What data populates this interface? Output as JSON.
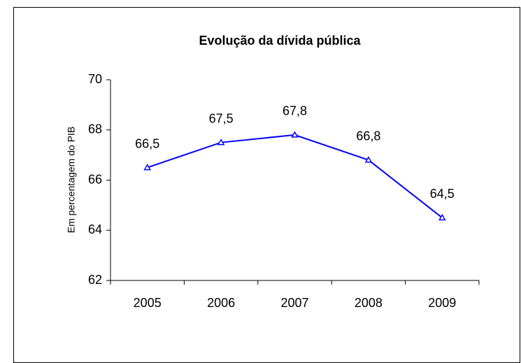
{
  "chart_data": {
    "type": "line",
    "title": "Evolução da dívida pública",
    "y_label": "Em percentagem do PIB",
    "categories": [
      "2005",
      "2006",
      "2007",
      "2008",
      "2009"
    ],
    "values": [
      66.5,
      67.5,
      67.8,
      66.8,
      64.5
    ],
    "value_labels": [
      "66,5",
      "67,5",
      "67,8",
      "66,8",
      "64,5"
    ],
    "color": "#0000ff",
    "ylim": [
      62,
      70
    ],
    "yticks": [
      62,
      64,
      66,
      68,
      70
    ],
    "grid": false
  }
}
